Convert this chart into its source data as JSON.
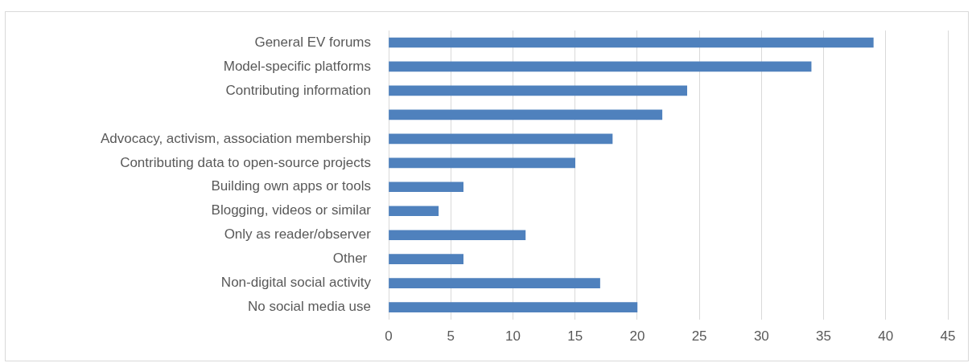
{
  "chart_data": {
    "type": "bar",
    "orientation": "horizontal",
    "categories": [
      "General EV forums",
      "Model-specific platforms",
      "Contributing information",
      null,
      "Advocacy, activism, association membership",
      "Contributing data to open-source projects",
      "Building own apps or tools",
      "Blogging, videos or similar",
      "Only as reader/observer",
      "Other ",
      "Non-digital social activity",
      "No social media use"
    ],
    "values": [
      39,
      34,
      24,
      22,
      18,
      15,
      6,
      4,
      11,
      6,
      17,
      20
    ],
    "color": "#4f81bd",
    "xlim": [
      0,
      45
    ],
    "xticks": [
      0,
      5,
      10,
      15,
      20,
      25,
      30,
      35,
      40,
      45
    ],
    "grid": "x",
    "legend": false
  }
}
